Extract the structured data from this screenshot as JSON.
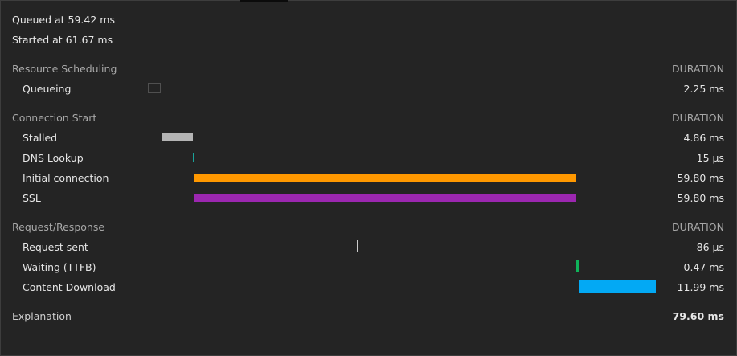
{
  "meta": {
    "queued": "Queued at 59.42 ms",
    "started": "Started at 61.67 ms"
  },
  "sections": {
    "scheduling": {
      "label": "Resource Scheduling",
      "duration_header": "DURATION",
      "rows": {
        "queueing": {
          "label": "Queueing",
          "value": "2.25 ms"
        }
      }
    },
    "connection": {
      "label": "Connection Start",
      "duration_header": "DURATION",
      "rows": {
        "stalled": {
          "label": "Stalled",
          "value": "4.86 ms",
          "color": "#b4b4b4"
        },
        "dns": {
          "label": "DNS Lookup",
          "value": "15 µs",
          "color": "#1aa39a"
        },
        "initial": {
          "label": "Initial connection",
          "value": "59.80 ms",
          "color": "#ff9800"
        },
        "ssl": {
          "label": "SSL",
          "value": "59.80 ms",
          "color": "#9c27b0"
        }
      }
    },
    "request": {
      "label": "Request/Response",
      "duration_header": "DURATION",
      "rows": {
        "sent": {
          "label": "Request sent",
          "value": "86 µs",
          "color": "#cccccc"
        },
        "waiting": {
          "label": "Waiting (TTFB)",
          "value": "0.47 ms",
          "color": "#0fb35a"
        },
        "download": {
          "label": "Content Download",
          "value": "11.99 ms",
          "color": "#03a9f4"
        }
      }
    }
  },
  "footer": {
    "explanation": "Explanation",
    "total": "79.60 ms"
  }
}
